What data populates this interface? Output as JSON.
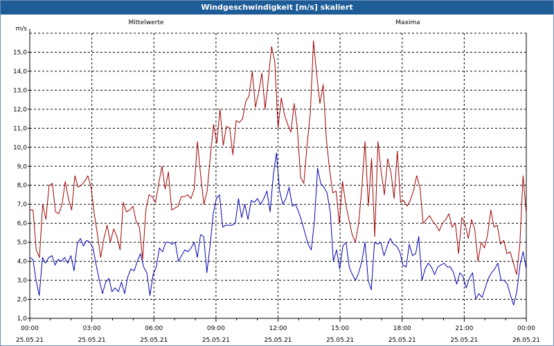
{
  "window": {
    "title": "Windgeschwindigkeit [m/s] skaliert"
  },
  "chart_data": {
    "type": "line",
    "title": "Windgeschwindigkeit [m/s] skaliert",
    "ylabel": "m/s",
    "ylim": [
      1.0,
      16.0
    ],
    "yticks": [
      "1,0",
      "2,0",
      "3,0",
      "4,0",
      "5,0",
      "6,0",
      "7,0",
      "8,0",
      "9,0",
      "10,0",
      "11,0",
      "12,0",
      "13,0",
      "14,0",
      "15,0"
    ],
    "xlim": [
      0,
      24
    ],
    "xticks": [
      {
        "time": "00:00",
        "date": "25.05.21"
      },
      {
        "time": "03:00",
        "date": "25.05.21"
      },
      {
        "time": "06:00",
        "date": "25.05.21"
      },
      {
        "time": "09:00",
        "date": "25.05.21"
      },
      {
        "time": "12:00",
        "date": "25.05.21"
      },
      {
        "time": "15:00",
        "date": "25.05.21"
      },
      {
        "time": "18:00",
        "date": "25.05.21"
      },
      {
        "time": "21:00",
        "date": "25.05.21"
      },
      {
        "time": "00:00",
        "date": "26.05.21"
      }
    ],
    "grid": true,
    "series": [
      {
        "name": "Mittelwerte",
        "color": "#0000b4",
        "values": [
          4.2,
          4.1,
          3.0,
          2.2,
          4.2,
          3.9,
          4.2,
          4.3,
          3.8,
          4.1,
          4.0,
          4.2,
          3.9,
          4.3,
          3.5,
          4.9,
          5.2,
          4.8,
          5.1,
          5.0,
          4.7,
          3.8,
          3.0,
          2.3,
          2.9,
          3.1,
          2.4,
          2.6,
          2.4,
          2.9,
          2.3,
          3.2,
          3.6,
          3.5,
          4.0,
          4.4,
          3.7,
          3.4,
          2.2,
          3.3,
          3.7,
          4.7,
          4.5,
          5.0,
          5.0,
          4.9,
          5.0,
          4.0,
          4.3,
          4.6,
          4.5,
          4.7,
          5.0,
          4.2,
          5.4,
          5.3,
          3.4,
          4.8,
          6.5,
          7.3,
          7.5,
          5.8,
          5.9,
          5.9,
          5.9,
          6.0,
          7.3,
          6.3,
          7.0,
          6.2,
          7.2,
          7.1,
          7.3,
          7.0,
          7.3,
          7.7,
          6.6,
          8.5,
          9.7,
          7.7,
          7.0,
          7.3,
          7.9,
          6.9,
          7.0,
          6.6,
          6.1,
          5.5,
          4.9,
          4.6,
          6.1,
          8.9,
          8.1,
          7.9,
          7.6,
          6.6,
          4.0,
          4.6,
          3.6,
          4.8,
          5.0,
          3.7,
          3.3,
          3.0,
          3.4,
          4.0,
          5.0,
          3.0,
          2.5,
          5.0,
          4.9,
          5.0,
          4.3,
          4.8,
          5.2,
          4.9,
          4.8,
          4.5,
          3.8,
          3.7,
          4.9,
          4.3,
          4.4,
          5.3,
          3.0,
          3.6,
          3.9,
          3.7,
          3.3,
          3.7,
          3.8,
          3.9,
          3.7,
          3.7,
          3.4,
          2.8,
          3.4,
          3.2,
          2.6,
          3.1,
          3.4,
          2.0,
          2.3,
          2.1,
          2.6,
          3.1,
          3.4,
          3.6,
          3.9,
          3.0,
          3.0,
          2.8,
          2.2,
          1.7,
          2.4,
          3.8,
          4.5,
          3.6
        ]
      },
      {
        "name": "Maxima",
        "color": "#a00000",
        "values": [
          6.7,
          6.7,
          4.6,
          4.2,
          7.0,
          6.2,
          8.0,
          8.1,
          6.6,
          6.5,
          7.0,
          8.2,
          7.3,
          6.7,
          8.5,
          7.9,
          8.0,
          8.2,
          8.5,
          7.9,
          6.5,
          5.4,
          4.2,
          5.2,
          5.9,
          5.0,
          5.7,
          5.3,
          4.6,
          7.1,
          6.6,
          6.7,
          6.9,
          6.1,
          5.8,
          4.1,
          6.7,
          7.5,
          7.4,
          7.1,
          8.1,
          9.0,
          7.8,
          8.7,
          6.7,
          6.8,
          6.9,
          7.4,
          7.4,
          7.5,
          7.3,
          7.8,
          10.3,
          8.5,
          7.0,
          7.7,
          9.5,
          11.2,
          10.2,
          12.0,
          10.1,
          11.1,
          11.0,
          9.6,
          11.4,
          11.3,
          11.5,
          12.4,
          12.7,
          14.0,
          12.1,
          12.9,
          13.9,
          12.0,
          13.6,
          15.3,
          14.5,
          11.0,
          12.6,
          11.7,
          11.2,
          10.8,
          12.3,
          11.0,
          8.4,
          8.1,
          10.1,
          11.8,
          15.6,
          13.8,
          12.3,
          13.3,
          10.4,
          8.8,
          7.6,
          7.7,
          6.0,
          8.2,
          7.0,
          6.2,
          5.4,
          5.0,
          6.0,
          7.9,
          10.3,
          6.9,
          9.4,
          5.3,
          10.3,
          8.7,
          7.5,
          9.4,
          8.7,
          7.3,
          9.8,
          7.1,
          7.2,
          6.9,
          7.2,
          7.7,
          8.5,
          7.9,
          6.0,
          6.2,
          6.4,
          6.1,
          5.9,
          5.6,
          6.0,
          6.2,
          6.5,
          5.8,
          6.0,
          4.4,
          6.3,
          6.0,
          5.2,
          6.2,
          5.7,
          4.0,
          5.0,
          4.7,
          5.4,
          6.7,
          5.8,
          5.9,
          4.9,
          5.1,
          4.4,
          4.5,
          3.9,
          3.3,
          4.9,
          8.5,
          6.5
        ]
      }
    ]
  }
}
